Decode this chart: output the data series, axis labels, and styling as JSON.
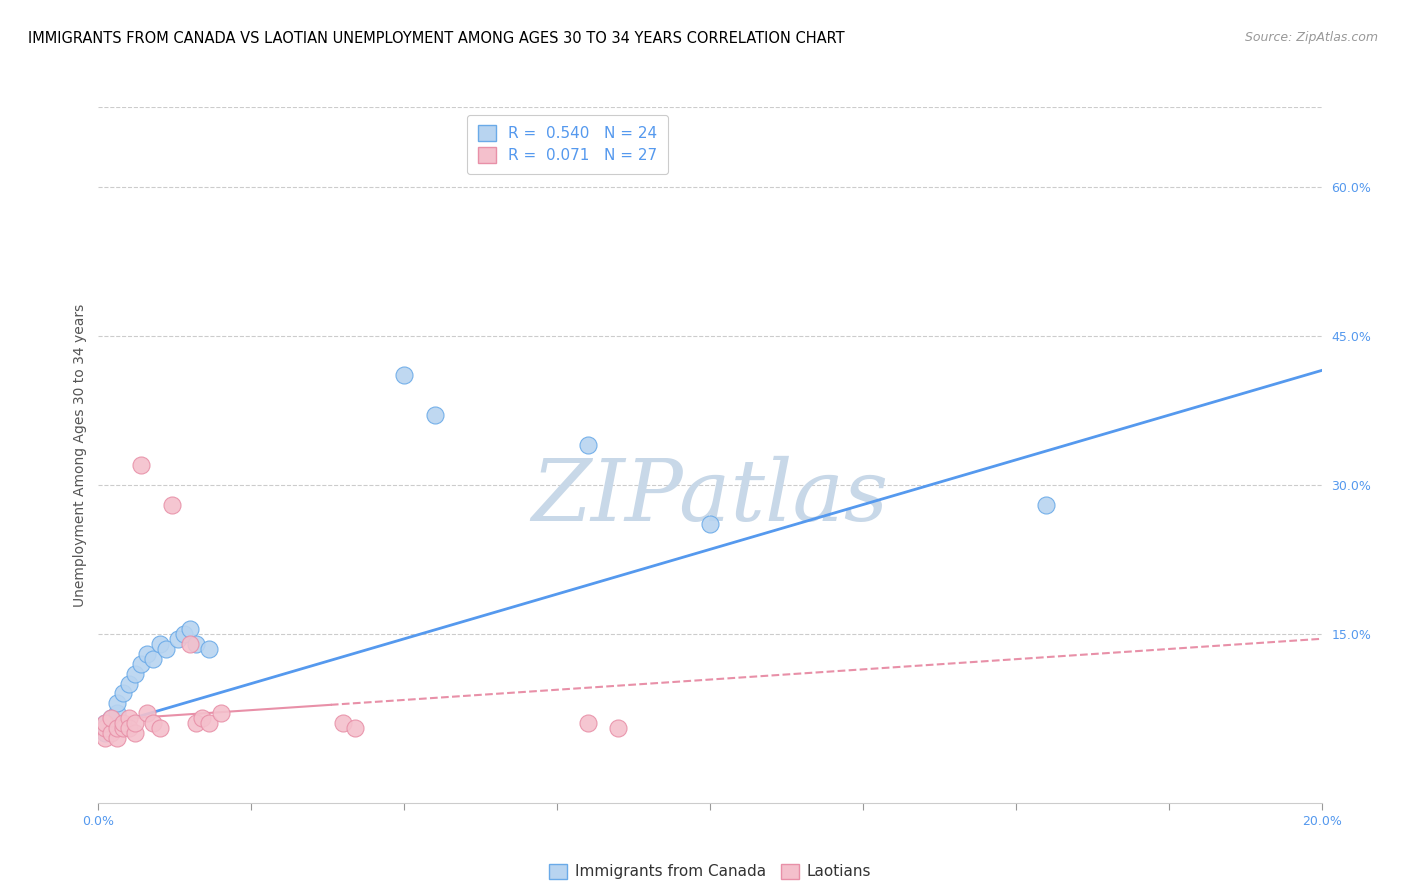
{
  "title": "IMMIGRANTS FROM CANADA VS LAOTIAN UNEMPLOYMENT AMONG AGES 30 TO 34 YEARS CORRELATION CHART",
  "source": "Source: ZipAtlas.com",
  "ylabel": "Unemployment Among Ages 30 to 34 years",
  "xlim": [
    0.0,
    0.2
  ],
  "ylim": [
    -0.02,
    0.68
  ],
  "right_yticks": [
    0.0,
    0.15,
    0.3,
    0.45,
    0.6
  ],
  "right_yticklabels": [
    "",
    "15.0%",
    "30.0%",
    "45.0%",
    "60.0%"
  ],
  "xticks": [
    0.0,
    0.025,
    0.05,
    0.075,
    0.1,
    0.125,
    0.15,
    0.175,
    0.2
  ],
  "xticklabels": [
    "0.0%",
    "",
    "",
    "",
    "",
    "",
    "",
    "",
    "20.0%"
  ],
  "blue_dots_x": [
    0.001,
    0.001,
    0.002,
    0.002,
    0.003,
    0.003,
    0.004,
    0.005,
    0.006,
    0.007,
    0.008,
    0.009,
    0.01,
    0.011,
    0.013,
    0.014,
    0.015,
    0.016,
    0.018,
    0.05,
    0.055,
    0.08,
    0.1,
    0.155
  ],
  "blue_dots_y": [
    0.05,
    0.06,
    0.055,
    0.065,
    0.07,
    0.08,
    0.09,
    0.1,
    0.11,
    0.12,
    0.13,
    0.125,
    0.14,
    0.135,
    0.145,
    0.15,
    0.155,
    0.14,
    0.135,
    0.41,
    0.37,
    0.34,
    0.26,
    0.28
  ],
  "pink_dots_x": [
    0.001,
    0.001,
    0.001,
    0.002,
    0.002,
    0.003,
    0.003,
    0.004,
    0.004,
    0.005,
    0.005,
    0.006,
    0.006,
    0.007,
    0.008,
    0.009,
    0.01,
    0.012,
    0.015,
    0.016,
    0.017,
    0.018,
    0.02,
    0.04,
    0.042,
    0.08,
    0.085
  ],
  "pink_dots_y": [
    0.045,
    0.055,
    0.06,
    0.05,
    0.065,
    0.045,
    0.055,
    0.055,
    0.06,
    0.065,
    0.055,
    0.05,
    0.06,
    0.32,
    0.07,
    0.06,
    0.055,
    0.28,
    0.14,
    0.06,
    0.065,
    0.06,
    0.07,
    0.06,
    0.055,
    0.06,
    0.055
  ],
  "blue_line_x": [
    0.0,
    0.2
  ],
  "blue_line_y": [
    0.055,
    0.415
  ],
  "pink_line_x": [
    0.0,
    0.2
  ],
  "pink_line_y": [
    0.063,
    0.145
  ],
  "R_blue": "0.540",
  "N_blue": "24",
  "R_pink": "0.071",
  "N_pink": "27",
  "blue_dot_fill": "#b8d4f0",
  "blue_dot_edge": "#6aaae8",
  "pink_dot_fill": "#f4c0cc",
  "pink_dot_edge": "#e890a8",
  "blue_line_color": "#5599ee",
  "pink_line_color": "#e890a8",
  "watermark": "ZIPatlas",
  "watermark_color": "#c8d8e8",
  "grid_color": "#cccccc",
  "title_fontsize": 10.5,
  "source_fontsize": 9,
  "axis_label_fontsize": 10,
  "tick_fontsize": 9,
  "legend_fontsize": 11
}
